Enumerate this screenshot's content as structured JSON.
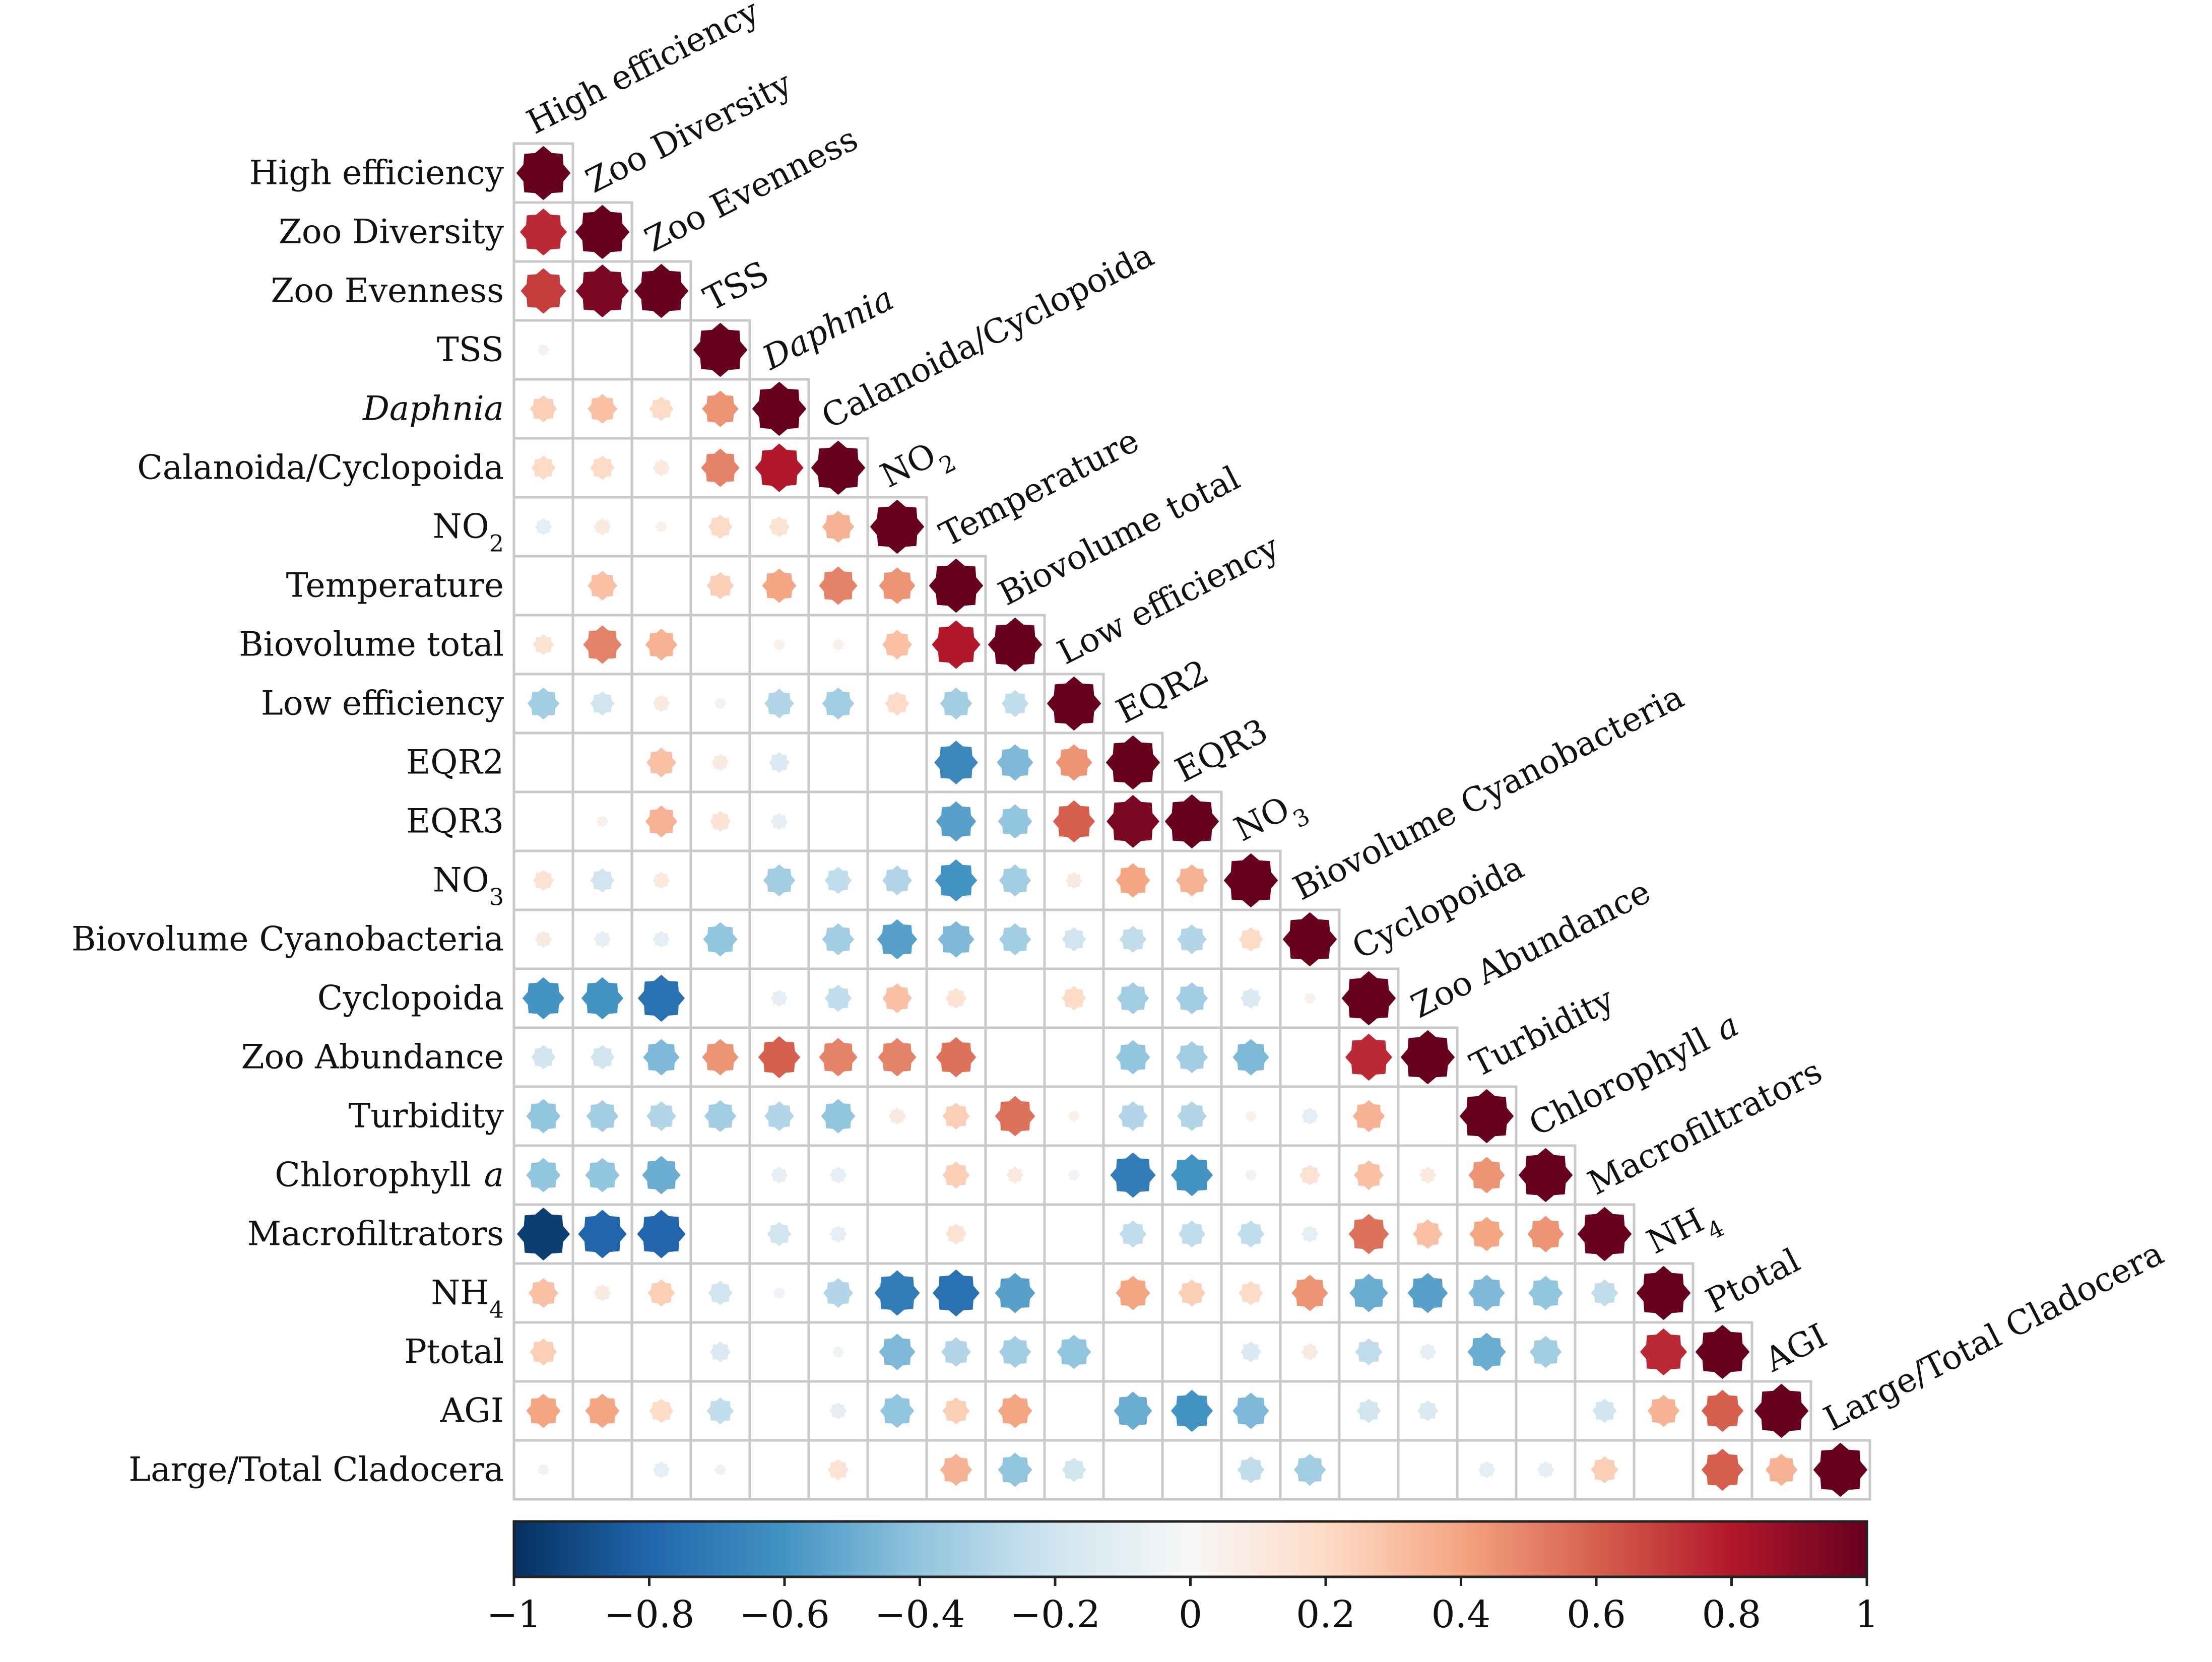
{
  "chart_data": {
    "type": "heatmap",
    "title": "",
    "variables": [
      {
        "label": "High efficiency"
      },
      {
        "label": "Zoo Diversity"
      },
      {
        "label": "Zoo Evenness"
      },
      {
        "label": "TSS"
      },
      {
        "label": "Daphnia",
        "italic": true
      },
      {
        "label": "Calanoida/Cyclopoida"
      },
      {
        "label": "NO",
        "sub": "2"
      },
      {
        "label": "Temperature"
      },
      {
        "label": "Biovolume  total"
      },
      {
        "label": "Low efficiency"
      },
      {
        "label": "EQR2"
      },
      {
        "label": "EQR3"
      },
      {
        "label": "NO",
        "sub": "3"
      },
      {
        "label": "Biovolume  Cyanobacteria"
      },
      {
        "label": "Cyclopoida"
      },
      {
        "label": "Zoo Abundance"
      },
      {
        "label": "Turbidity"
      },
      {
        "label": "Chlorophyll",
        "italic_suffix": "a"
      },
      {
        "label": "Macrofiltrators"
      },
      {
        "label": "NH",
        "sub": "4"
      },
      {
        "label": "Ptotal"
      },
      {
        "label": "AGI"
      },
      {
        "label": "Large/Total Cladocera"
      }
    ],
    "matrix": [
      [
        1
      ],
      [
        0.75,
        1
      ],
      [
        0.7,
        0.95,
        1
      ],
      [
        0.05,
        0,
        0,
        1
      ],
      [
        0.25,
        0.3,
        0.2,
        0.45,
        1
      ],
      [
        0.2,
        0.2,
        0.1,
        0.5,
        0.8,
        1
      ],
      [
        -0.1,
        0.1,
        0.05,
        0.2,
        0.15,
        0.35,
        1
      ],
      [
        0,
        0.3,
        0,
        0.25,
        0.4,
        0.5,
        0.45,
        1
      ],
      [
        0.15,
        0.5,
        0.35,
        0,
        0.05,
        0.05,
        0.3,
        0.8,
        1
      ],
      [
        -0.35,
        -0.2,
        0.1,
        -0.05,
        -0.3,
        -0.35,
        0.2,
        -0.35,
        -0.25,
        1
      ],
      [
        0,
        0,
        0.3,
        0.1,
        -0.15,
        0,
        0,
        -0.65,
        -0.45,
        0.45,
        1
      ],
      [
        0,
        0.05,
        0.35,
        0.15,
        -0.1,
        0,
        0,
        -0.55,
        -0.4,
        0.6,
        0.95,
        1
      ],
      [
        0.15,
        -0.2,
        0.1,
        0,
        -0.35,
        -0.25,
        -0.3,
        -0.6,
        -0.35,
        0.1,
        0.4,
        0.35,
        1
      ],
      [
        0.1,
        -0.1,
        -0.1,
        -0.4,
        0,
        -0.35,
        -0.55,
        -0.45,
        -0.35,
        -0.2,
        -0.25,
        -0.3,
        0.2,
        1
      ],
      [
        -0.6,
        -0.6,
        -0.75,
        0,
        -0.1,
        -0.25,
        0.3,
        0.15,
        0,
        0.2,
        -0.35,
        -0.35,
        -0.15,
        0.05,
        1
      ],
      [
        -0.2,
        -0.2,
        -0.45,
        0.45,
        0.6,
        0.5,
        0.5,
        0.55,
        0,
        0,
        -0.4,
        -0.35,
        -0.45,
        0,
        0.75,
        1
      ],
      [
        -0.4,
        -0.35,
        -0.3,
        -0.35,
        -0.3,
        -0.4,
        0.1,
        0.25,
        0.55,
        0.05,
        -0.3,
        -0.3,
        0.05,
        -0.1,
        0.35,
        0,
        1
      ],
      [
        -0.4,
        -0.4,
        -0.5,
        0,
        -0.1,
        -0.1,
        0,
        0.25,
        0.1,
        -0.05,
        -0.7,
        -0.6,
        -0.05,
        0.15,
        0.3,
        0.1,
        0.45,
        1
      ],
      [
        -0.95,
        -0.8,
        -0.8,
        0,
        -0.2,
        -0.1,
        0,
        0.15,
        0,
        0,
        -0.25,
        -0.25,
        -0.25,
        -0.1,
        0.55,
        0.3,
        0.4,
        0.45,
        1
      ],
      [
        0.3,
        0.1,
        0.25,
        -0.2,
        -0.05,
        -0.3,
        -0.7,
        -0.75,
        -0.55,
        0,
        0.4,
        0.25,
        0.2,
        0.45,
        -0.5,
        -0.55,
        -0.45,
        -0.4,
        -0.25,
        1
      ],
      [
        0.25,
        0,
        0,
        -0.15,
        0,
        -0.05,
        -0.45,
        -0.3,
        -0.35,
        -0.4,
        0,
        0,
        -0.15,
        0.1,
        -0.25,
        -0.1,
        -0.5,
        -0.35,
        0,
        0.75,
        1
      ],
      [
        0.4,
        0.4,
        0.2,
        -0.25,
        0,
        -0.1,
        -0.4,
        0.25,
        0.4,
        0,
        -0.5,
        -0.6,
        -0.45,
        0,
        -0.2,
        -0.15,
        0,
        0,
        -0.2,
        0.35,
        0.6,
        1
      ],
      [
        -0.05,
        0,
        -0.1,
        -0.05,
        0,
        0.15,
        0,
        0.35,
        -0.4,
        -0.2,
        0,
        0,
        -0.25,
        -0.35,
        0,
        0,
        -0.1,
        -0.1,
        0.25,
        0,
        0.6,
        0.35,
        1
      ]
    ],
    "colorbar": {
      "range": [
        -1,
        1
      ],
      "ticks": [
        -1,
        -0.8,
        -0.6,
        -0.4,
        -0.2,
        0,
        0.2,
        0.4,
        0.6,
        0.8,
        1
      ],
      "tick_labels": [
        "−1",
        "−0.8",
        "−0.6",
        "−0.4",
        "−0.2",
        "0",
        "0.2",
        "0.4",
        "0.6",
        "0.8",
        "1"
      ],
      "colors": [
        "#053061",
        "#2166ac",
        "#4393c3",
        "#92c5de",
        "#d1e5f0",
        "#f7f7f7",
        "#fddbc7",
        "#f4a582",
        "#d6604d",
        "#b2182b",
        "#67001f"
      ]
    },
    "legend_position": "bottom",
    "grid": true
  }
}
